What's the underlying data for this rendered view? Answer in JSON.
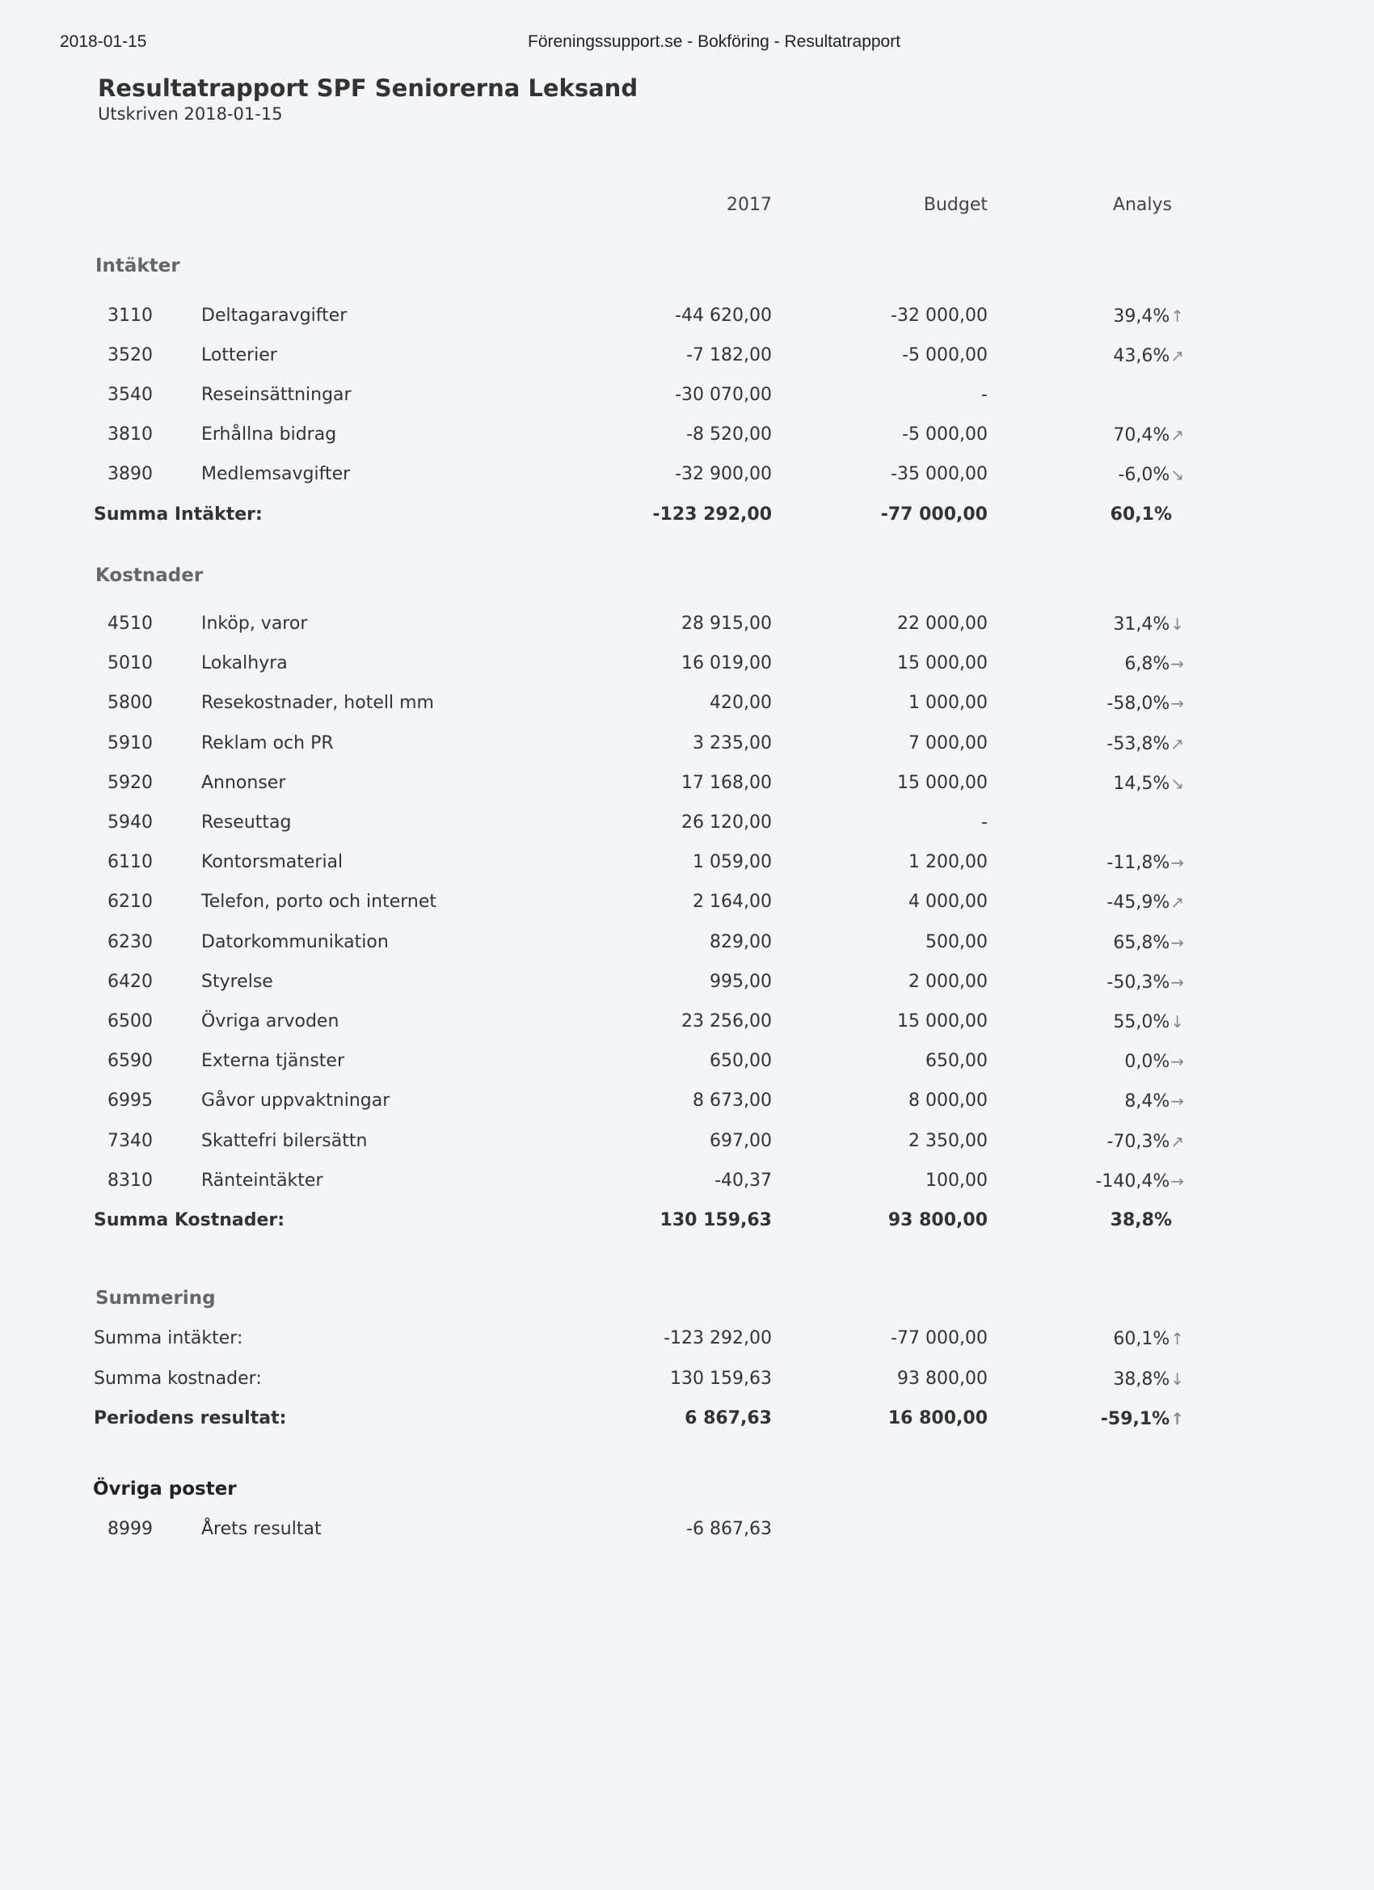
{
  "header": {
    "date": "2018-01-15",
    "center": "Föreningssupport.se - Bokföring - Resultatrapport"
  },
  "title": "Resultatrapport SPF Seniorerna Leksand",
  "subtitle": "Utskriven 2018-01-15",
  "columns": {
    "c2017": "2017",
    "budget": "Budget",
    "analys": "Analys"
  },
  "arrow_icons": {
    "up": "↑",
    "up-right": "↗",
    "right": "→",
    "down-right": "↘",
    "down": "↓"
  },
  "intakter": {
    "heading": "Intäkter",
    "rows": [
      {
        "code": "3110",
        "name": "Deltagaravgifter",
        "v2017": "-44 620,00",
        "budget": "-32 000,00",
        "analys": "39,4%",
        "arrow": "up"
      },
      {
        "code": "3520",
        "name": "Lotterier",
        "v2017": "-7 182,00",
        "budget": "-5 000,00",
        "analys": "43,6%",
        "arrow": "up-right"
      },
      {
        "code": "3540",
        "name": "Reseinsättningar",
        "v2017": "-30 070,00",
        "budget": "-",
        "analys": "",
        "arrow": ""
      },
      {
        "code": "3810",
        "name": "Erhållna bidrag",
        "v2017": "-8 520,00",
        "budget": "-5 000,00",
        "analys": "70,4%",
        "arrow": "up-right"
      },
      {
        "code": "3890",
        "name": "Medlemsavgifter",
        "v2017": "-32 900,00",
        "budget": "-35 000,00",
        "analys": "-6,0%",
        "arrow": "down-right"
      }
    ],
    "sum": {
      "label": "Summa Intäkter:",
      "v2017": "-123 292,00",
      "budget": "-77 000,00",
      "analys": "60,1%"
    }
  },
  "kostnader": {
    "heading": "Kostnader",
    "rows": [
      {
        "code": "4510",
        "name": "Inköp, varor",
        "v2017": "28 915,00",
        "budget": "22 000,00",
        "analys": "31,4%",
        "arrow": "down"
      },
      {
        "code": "5010",
        "name": "Lokalhyra",
        "v2017": "16 019,00",
        "budget": "15 000,00",
        "analys": "6,8%",
        "arrow": "right"
      },
      {
        "code": "5800",
        "name": "Resekostnader, hotell mm",
        "v2017": "420,00",
        "budget": "1 000,00",
        "analys": "-58,0%",
        "arrow": "right"
      },
      {
        "code": "5910",
        "name": "Reklam och PR",
        "v2017": "3 235,00",
        "budget": "7 000,00",
        "analys": "-53,8%",
        "arrow": "up-right"
      },
      {
        "code": "5920",
        "name": "Annonser",
        "v2017": "17 168,00",
        "budget": "15 000,00",
        "analys": "14,5%",
        "arrow": "down-right"
      },
      {
        "code": "5940",
        "name": "Reseuttag",
        "v2017": "26 120,00",
        "budget": "-",
        "analys": "",
        "arrow": ""
      },
      {
        "code": "6110",
        "name": "Kontorsmaterial",
        "v2017": "1 059,00",
        "budget": "1 200,00",
        "analys": "-11,8%",
        "arrow": "right"
      },
      {
        "code": "6210",
        "name": "Telefon, porto och internet",
        "v2017": "2 164,00",
        "budget": "4 000,00",
        "analys": "-45,9%",
        "arrow": "up-right"
      },
      {
        "code": "6230",
        "name": "Datorkommunikation",
        "v2017": "829,00",
        "budget": "500,00",
        "analys": "65,8%",
        "arrow": "right"
      },
      {
        "code": "6420",
        "name": "Styrelse",
        "v2017": "995,00",
        "budget": "2 000,00",
        "analys": "-50,3%",
        "arrow": "right"
      },
      {
        "code": "6500",
        "name": "Övriga arvoden",
        "v2017": "23 256,00",
        "budget": "15 000,00",
        "analys": "55,0%",
        "arrow": "down"
      },
      {
        "code": "6590",
        "name": "Externa tjänster",
        "v2017": "650,00",
        "budget": "650,00",
        "analys": "0,0%",
        "arrow": "right"
      },
      {
        "code": "6995",
        "name": "Gåvor uppvaktningar",
        "v2017": "8 673,00",
        "budget": "8 000,00",
        "analys": "8,4%",
        "arrow": "right"
      },
      {
        "code": "7340",
        "name": "Skattefri bilersättn",
        "v2017": "697,00",
        "budget": "2 350,00",
        "analys": "-70,3%",
        "arrow": "up-right"
      },
      {
        "code": "8310",
        "name": "Ränteintäkter",
        "v2017": "-40,37",
        "budget": "100,00",
        "analys": "-140,4%",
        "arrow": "right"
      }
    ],
    "sum": {
      "label": "Summa Kostnader:",
      "v2017": "130 159,63",
      "budget": "93 800,00",
      "analys": "38,8%"
    }
  },
  "summering": {
    "heading": "Summering",
    "rows": [
      {
        "label": "Summa intäkter:",
        "v2017": "-123 292,00",
        "budget": "-77 000,00",
        "analys": "60,1%",
        "arrow": "up",
        "bold": false
      },
      {
        "label": "Summa kostnader:",
        "v2017": "130 159,63",
        "budget": "93 800,00",
        "analys": "38,8%",
        "arrow": "down",
        "bold": false
      },
      {
        "label": "Periodens resultat:",
        "v2017": "6 867,63",
        "budget": "16 800,00",
        "analys": "-59,1%",
        "arrow": "up",
        "bold": true
      }
    ]
  },
  "ovriga": {
    "heading": "Övriga poster",
    "rows": [
      {
        "code": "8999",
        "name": "Årets resultat",
        "v2017": "-6 867,63"
      }
    ]
  }
}
